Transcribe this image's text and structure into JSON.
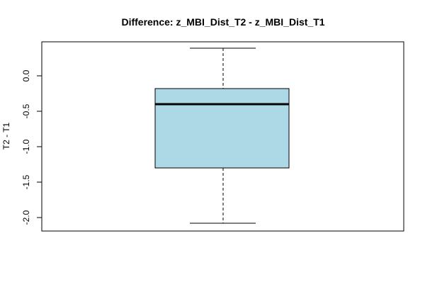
{
  "chart_data": {
    "type": "box",
    "title": "Difference: z_MBI_Dist_T2 - z_MBI_Dist_T1",
    "xlabel": "",
    "ylabel": "T2 - T1",
    "yticks": [
      "0.0",
      "-0.5",
      "-1.0",
      "-1.5",
      "-2.0"
    ],
    "ytick_values": [
      0.0,
      -0.5,
      -1.0,
      -1.5,
      -2.0
    ],
    "ylim": [
      -2.18,
      0.4
    ],
    "box": {
      "whisker_low": -2.08,
      "q1": -1.3,
      "median": -0.4,
      "q3": -0.18,
      "whisker_high": 0.39
    },
    "grid": false,
    "colors": {
      "box_fill": "#add8e6",
      "stroke": "#000000"
    }
  }
}
